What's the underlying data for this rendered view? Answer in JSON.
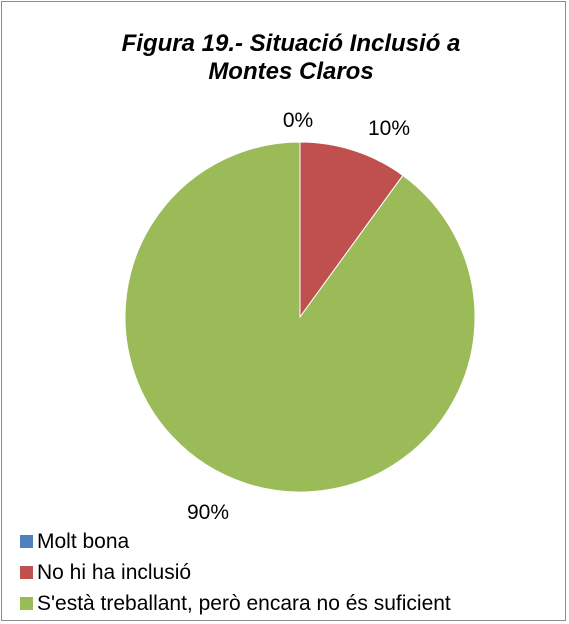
{
  "chart_data": {
    "type": "pie",
    "title": "Figura 19.- Situació Inclusió a Montes Claros",
    "title_lines": [
      "Figura 19.- Situació Inclusió a",
      "Montes Claros"
    ],
    "categories": [
      "Molt bona",
      "No hi ha inclusió",
      "S'està treballant, però encara no és suficient"
    ],
    "values": [
      0,
      10,
      90
    ],
    "data_labels": [
      "0%",
      "10%",
      "90%"
    ],
    "colors": [
      "#4f81bd",
      "#c0504d",
      "#9bbb59"
    ],
    "legend_position": "bottom-left"
  }
}
